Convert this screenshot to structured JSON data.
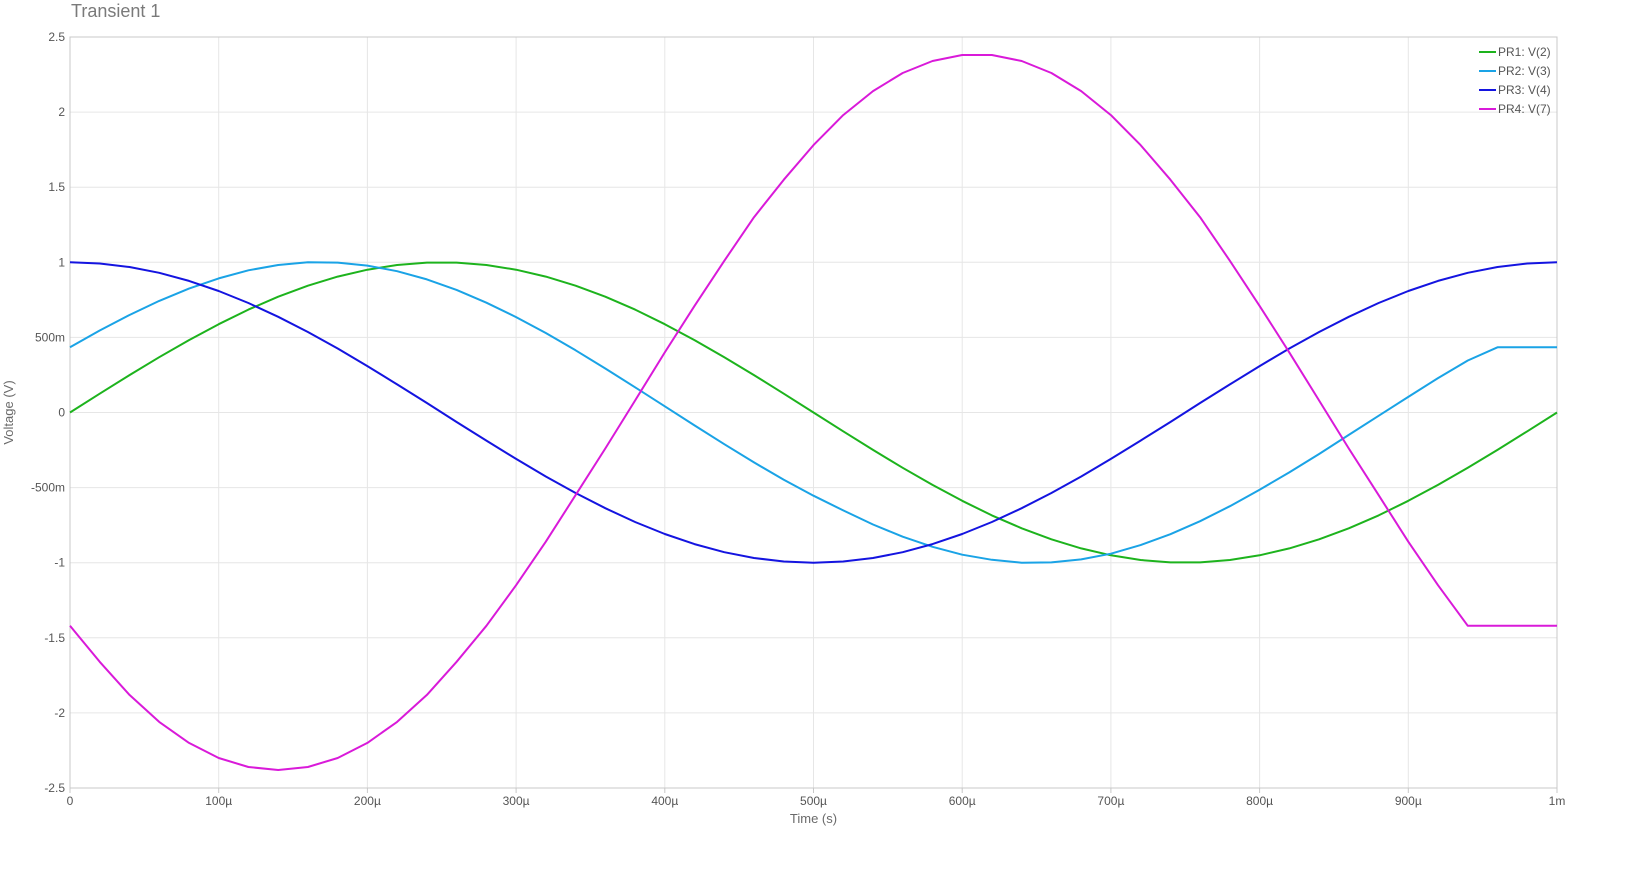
{
  "chart_data": {
    "type": "line",
    "title": "Transient 1",
    "xlabel": "Time (s)",
    "ylabel": "Voltage (V)",
    "xlim": [
      0,
      0.001
    ],
    "ylim": [
      -2.5,
      2.5
    ],
    "grid": true,
    "legend_position": "top-right",
    "x_ticks": [
      {
        "value": 0,
        "label": "0"
      },
      {
        "value": 0.0001,
        "label": "100µ"
      },
      {
        "value": 0.0002,
        "label": "200µ"
      },
      {
        "value": 0.0003,
        "label": "300µ"
      },
      {
        "value": 0.0004,
        "label": "400µ"
      },
      {
        "value": 0.0005,
        "label": "500µ"
      },
      {
        "value": 0.0006,
        "label": "600µ"
      },
      {
        "value": 0.0007,
        "label": "700µ"
      },
      {
        "value": 0.0008,
        "label": "800µ"
      },
      {
        "value": 0.0009,
        "label": "900µ"
      },
      {
        "value": 0.001,
        "label": "1m"
      }
    ],
    "y_ticks": [
      {
        "value": 2.5,
        "label": "2.5"
      },
      {
        "value": 2,
        "label": "2"
      },
      {
        "value": 1.5,
        "label": "1.5"
      },
      {
        "value": 1,
        "label": "1"
      },
      {
        "value": 0.5,
        "label": "500m"
      },
      {
        "value": 0,
        "label": "0"
      },
      {
        "value": -0.5,
        "label": "-500m"
      },
      {
        "value": -1,
        "label": "-1"
      },
      {
        "value": -1.5,
        "label": "-1.5"
      },
      {
        "value": -2,
        "label": "-2"
      },
      {
        "value": -2.5,
        "label": "-2.5"
      }
    ],
    "x": [
      0,
      2e-05,
      4e-05,
      6e-05,
      8e-05,
      0.0001,
      0.00012,
      0.00014,
      0.00016,
      0.00018,
      0.0002,
      0.00022,
      0.00024,
      0.00026,
      0.00028,
      0.0003,
      0.00032,
      0.00034,
      0.00036,
      0.00038,
      0.0004,
      0.00042,
      0.00044,
      0.00046,
      0.00048,
      0.0005,
      0.00052,
      0.00054,
      0.00056,
      0.00058,
      0.0006,
      0.00062,
      0.00064,
      0.00066,
      0.00068,
      0.0007,
      0.00072,
      0.00074,
      0.00076,
      0.00078,
      0.0008,
      0.00082,
      0.00084,
      0.00086,
      0.00088,
      0.0009,
      0.00092,
      0.00094,
      0.00096,
      0.00098,
      0.001
    ],
    "series": [
      {
        "name": "PR1: V(2)",
        "color": "#1db31d",
        "values": [
          0,
          0.125,
          0.249,
          0.368,
          0.482,
          0.588,
          0.685,
          0.771,
          0.844,
          0.905,
          0.951,
          0.982,
          0.998,
          0.998,
          0.982,
          0.951,
          0.905,
          0.844,
          0.771,
          0.685,
          0.588,
          0.482,
          0.368,
          0.249,
          0.125,
          0,
          -0.125,
          -0.249,
          -0.368,
          -0.482,
          -0.588,
          -0.685,
          -0.771,
          -0.844,
          -0.905,
          -0.951,
          -0.982,
          -0.998,
          -0.998,
          -0.982,
          -0.951,
          -0.905,
          -0.844,
          -0.771,
          -0.685,
          -0.588,
          -0.482,
          -0.368,
          -0.249,
          -0.125,
          0
        ]
      },
      {
        "name": "PR2: V(3)",
        "color": "#1aa3e6",
        "values": [
          0.434,
          0.546,
          0.649,
          0.743,
          0.825,
          0.893,
          0.947,
          0.982,
          1.0,
          0.998,
          0.978,
          0.941,
          0.886,
          0.816,
          0.731,
          0.635,
          0.529,
          0.414,
          0.293,
          0.168,
          0.041,
          -0.086,
          -0.211,
          -0.332,
          -0.448,
          -0.554,
          -0.652,
          -0.746,
          -0.827,
          -0.894,
          -0.947,
          -0.981,
          -1.0,
          -0.998,
          -0.978,
          -0.94,
          -0.883,
          -0.81,
          -0.724,
          -0.624,
          -0.514,
          -0.399,
          -0.276,
          -0.149,
          -0.022,
          0.104,
          0.229,
          0.346,
          0.434,
          0.434,
          0.434
        ]
      },
      {
        "name": "PR3: V(4)",
        "color": "#1414e0",
        "values": [
          1.0,
          0.992,
          0.969,
          0.93,
          0.876,
          0.809,
          0.729,
          0.637,
          0.536,
          0.426,
          0.309,
          0.187,
          0.063,
          -0.063,
          -0.187,
          -0.309,
          -0.426,
          -0.536,
          -0.637,
          -0.729,
          -0.809,
          -0.876,
          -0.93,
          -0.969,
          -0.992,
          -1.0,
          -0.992,
          -0.969,
          -0.93,
          -0.876,
          -0.809,
          -0.729,
          -0.637,
          -0.536,
          -0.426,
          -0.309,
          -0.187,
          -0.063,
          0.063,
          0.187,
          0.309,
          0.426,
          0.536,
          0.637,
          0.729,
          0.809,
          0.876,
          0.93,
          0.969,
          0.992,
          1.0
        ]
      },
      {
        "name": "PR4: V(7)",
        "color": "#d91ad9",
        "values": [
          -1.42,
          -1.66,
          -1.88,
          -2.06,
          -2.2,
          -2.3,
          -2.36,
          -2.38,
          -2.36,
          -2.3,
          -2.2,
          -2.06,
          -1.88,
          -1.66,
          -1.42,
          -1.15,
          -0.86,
          -0.55,
          -0.24,
          0.08,
          0.4,
          0.71,
          1.01,
          1.3,
          1.55,
          1.78,
          1.98,
          2.14,
          2.26,
          2.34,
          2.38,
          2.38,
          2.34,
          2.26,
          2.14,
          1.98,
          1.78,
          1.55,
          1.3,
          1.01,
          0.71,
          0.4,
          0.08,
          -0.24,
          -0.55,
          -0.86,
          -1.15,
          -1.42,
          -1.42,
          -1.42,
          -1.42
        ]
      }
    ]
  }
}
